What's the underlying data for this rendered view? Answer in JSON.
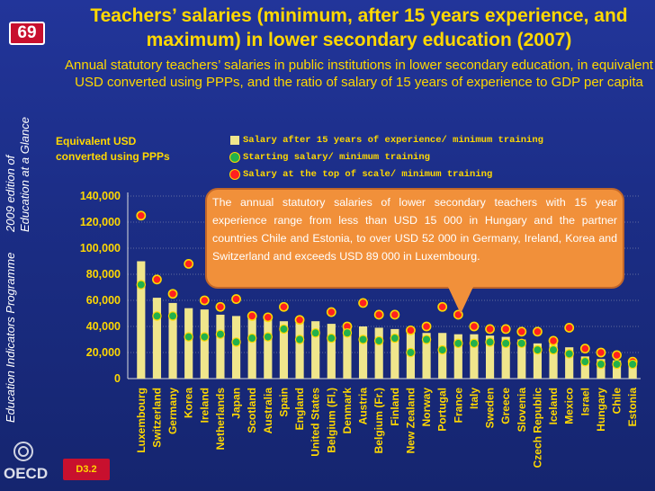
{
  "slide_number": "69",
  "side_caption": {
    "left": "Education Indicators Programme",
    "right": "2009 edition of Education at a Glance"
  },
  "logo_text": "OECD",
  "footer_tag": "D3.2",
  "title": "Teachers’ salaries (minimum, after 15 years experience, and maximum) in lower secondary education (2007)",
  "subtitle": "Annual statutory teachers’ salaries in public institutions in lower secondary education, in equivalent USD converted using PPPs, and the ratio of salary of 15 years of experience to GDP per capita",
  "y_axis_label": "Equivalent USD converted using PPPs",
  "callout": "The annual statutory salaries of lower secondary teachers with 15 year experience range from less than USD 15 000 in Hungary and the partner countries Chile and Estonia, to over USD 52 000 in Germany, Ireland, Korea and Switzerland and exceeds USD 89 000 in Luxembourg.",
  "colors": {
    "background": "#1b2f86",
    "text": "#ffd800",
    "bar": "#f0e68c",
    "start_dot": "#22b14c",
    "top_dot": "#ff2020",
    "dot_ring": "#ffd800",
    "callout": "#f1903a"
  },
  "chart_data": {
    "type": "bar",
    "ylim": [
      0,
      140000
    ],
    "yticks": [
      "0",
      "20,000",
      "40,000",
      "60,000",
      "80,000",
      "100,000",
      "120,000",
      "140,000"
    ],
    "categories": [
      "Luxembourg",
      "Switzerland",
      "Germany",
      "Korea",
      "Ireland",
      "Netherlands",
      "Japan",
      "Scotland",
      "Australia",
      "Spain",
      "England",
      "United States",
      "Belgium (Fl.)",
      "Denmark",
      "Austria",
      "Belgium (Fr.)",
      "Finland",
      "New Zealand",
      "Norway",
      "Portugal",
      "France",
      "Italy",
      "Sweden",
      "Greece",
      "Slovenia",
      "Czech Republic",
      "Iceland",
      "Mexico",
      "Israel",
      "Hungary",
      "Chile",
      "Estonia"
    ],
    "series": [
      {
        "name": "Salary after 15 years of experience/ minimum training",
        "values": [
          90000,
          62000,
          58000,
          54000,
          53000,
          49000,
          48000,
          46000,
          45000,
          44000,
          44000,
          44000,
          42000,
          40000,
          40000,
          39000,
          38000,
          38000,
          35000,
          35000,
          34000,
          34000,
          33000,
          32000,
          30000,
          27000,
          27000,
          24000,
          17000,
          15000,
          14000,
          12000
        ]
      },
      {
        "name": "Starting salary/ minimum training",
        "values": [
          72000,
          48000,
          48000,
          32000,
          32000,
          34000,
          28000,
          31000,
          32000,
          38000,
          30000,
          35000,
          31000,
          35000,
          30000,
          29000,
          31000,
          20000,
          30000,
          22000,
          27000,
          27000,
          28000,
          27000,
          27000,
          22000,
          22000,
          19000,
          13000,
          11000,
          11000,
          11000
        ]
      },
      {
        "name": "Salary at the top of scale/ minimum training",
        "values": [
          125000,
          76000,
          65000,
          88000,
          60000,
          55000,
          61000,
          48000,
          47000,
          55000,
          45000,
          null,
          51000,
          40000,
          58000,
          49000,
          49000,
          37000,
          40000,
          55000,
          49000,
          40000,
          38000,
          38000,
          36000,
          36000,
          29000,
          39000,
          23000,
          20000,
          18000,
          13000
        ]
      }
    ]
  }
}
